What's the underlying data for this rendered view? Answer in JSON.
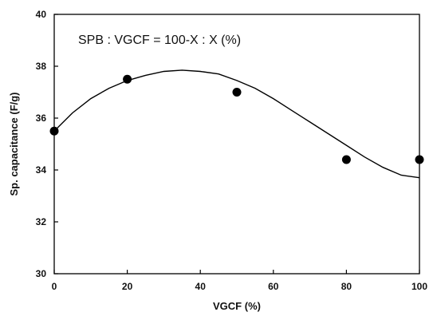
{
  "chart_data": {
    "type": "scatter",
    "title": "",
    "xlabel": "VGCF (%)",
    "ylabel": "Sp. capacitance (F/g)",
    "xlim": [
      0,
      100
    ],
    "ylim": [
      30,
      40
    ],
    "xticks": [
      0,
      20,
      40,
      60,
      80,
      100
    ],
    "yticks": [
      30,
      32,
      34,
      36,
      38,
      40
    ],
    "annotation": "SPB : VGCF = 100-X : X (%)",
    "grid": false,
    "series": [
      {
        "kind": "points",
        "marker": "circle-filled",
        "x": [
          0,
          20,
          50,
          80,
          100
        ],
        "y": [
          35.5,
          37.5,
          37.0,
          34.4,
          34.4
        ]
      },
      {
        "kind": "fit-curve",
        "x": [
          0,
          5,
          10,
          15,
          20,
          25,
          30,
          35,
          40,
          45,
          50,
          55,
          60,
          65,
          70,
          75,
          80,
          85,
          90,
          95,
          100
        ],
        "y": [
          35.5,
          36.2,
          36.75,
          37.15,
          37.45,
          37.65,
          37.8,
          37.85,
          37.8,
          37.7,
          37.45,
          37.15,
          36.75,
          36.3,
          35.85,
          35.4,
          34.95,
          34.5,
          34.1,
          33.8,
          33.7
        ]
      }
    ],
    "colors": {
      "marks": "#000000",
      "axes": "#000000"
    }
  }
}
